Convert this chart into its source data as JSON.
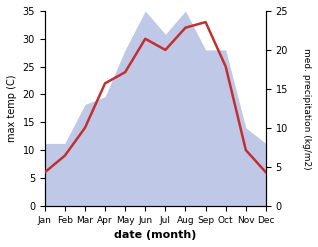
{
  "months": [
    "Jan",
    "Feb",
    "Mar",
    "Apr",
    "May",
    "Jun",
    "Jul",
    "Aug",
    "Sep",
    "Oct",
    "Nov",
    "Dec"
  ],
  "month_indices": [
    1,
    2,
    3,
    4,
    5,
    6,
    7,
    8,
    9,
    10,
    11,
    12
  ],
  "temperature": [
    6,
    9,
    14,
    22,
    24,
    30,
    28,
    32,
    33,
    25,
    10,
    6
  ],
  "precipitation": [
    8,
    8,
    13,
    14,
    20,
    25,
    22,
    25,
    20,
    20,
    10,
    8
  ],
  "temp_color": "#c03030",
  "precip_fill_color": "#c0c8e8",
  "temp_ylim": [
    0,
    35
  ],
  "precip_ylim": [
    0,
    25
  ],
  "temp_yticks": [
    0,
    5,
    10,
    15,
    20,
    25,
    30,
    35
  ],
  "precip_yticks": [
    0,
    5,
    10,
    15,
    20,
    25
  ],
  "xlabel": "date (month)",
  "ylabel_left": "max temp (C)",
  "ylabel_right": "med. precipitation (kg/m2)",
  "fig_width": 3.18,
  "fig_height": 2.47,
  "dpi": 100
}
